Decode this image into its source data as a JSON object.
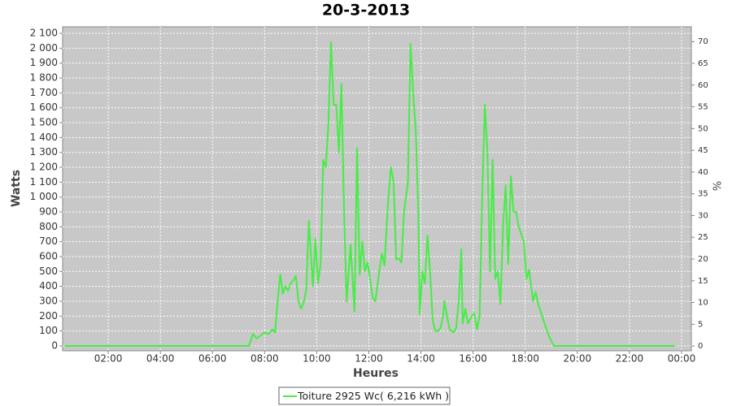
{
  "chart_data": {
    "type": "line",
    "title": "20-3-2013",
    "x_label": "Heures",
    "y_label": "Watts",
    "y2_label": "%",
    "legend_position": "bottom",
    "grid": true,
    "xlim": [
      0.25,
      24.375
    ],
    "xticks": [
      {
        "value": 2,
        "label": "02:00"
      },
      {
        "value": 4,
        "label": "04:00"
      },
      {
        "value": 6,
        "label": "06:00"
      },
      {
        "value": 8,
        "label": "08:00"
      },
      {
        "value": 10,
        "label": "10:00"
      },
      {
        "value": 12,
        "label": "12:00"
      },
      {
        "value": 14,
        "label": "14:00"
      },
      {
        "value": 16,
        "label": "16:00"
      },
      {
        "value": 18,
        "label": "18:00"
      },
      {
        "value": 20,
        "label": "20:00"
      },
      {
        "value": 22,
        "label": "22:00"
      },
      {
        "value": 24,
        "label": "00:00"
      }
    ],
    "ylim": [
      -33,
      2144
    ],
    "yticks": [
      0,
      100,
      200,
      300,
      400,
      500,
      600,
      700,
      800,
      900,
      {
        "value": 1000,
        "label": "1 000"
      },
      {
        "value": 1100,
        "label": "1 100"
      },
      {
        "value": 1200,
        "label": "1 200"
      },
      {
        "value": 1300,
        "label": "1 300"
      },
      {
        "value": 1400,
        "label": "1 400"
      },
      {
        "value": 1500,
        "label": "1 500"
      },
      {
        "value": 1600,
        "label": "1 600"
      },
      {
        "value": 1700,
        "label": "1 700"
      },
      {
        "value": 1800,
        "label": "1 800"
      },
      {
        "value": 1900,
        "label": "1 900"
      },
      {
        "value": 2000,
        "label": "2 000"
      },
      {
        "value": 2100,
        "label": "2 100"
      }
    ],
    "y2lim": [
      -1.1,
      73.4
    ],
    "y2ticks": [
      0,
      5,
      10,
      15,
      20,
      25,
      30,
      35,
      40,
      45,
      50,
      55,
      60,
      65,
      70
    ],
    "x": [
      0.34,
      7.4,
      7.55,
      7.7,
      7.85,
      8.0,
      8.15,
      8.3,
      8.4,
      8.5,
      8.6,
      8.7,
      8.8,
      8.9,
      9.0,
      9.1,
      9.2,
      9.3,
      9.4,
      9.5,
      9.6,
      9.7,
      9.8,
      9.85,
      9.95,
      10.05,
      10.15,
      10.25,
      10.35,
      10.45,
      10.55,
      10.65,
      10.75,
      10.85,
      10.95,
      11.05,
      11.15,
      11.3,
      11.45,
      11.55,
      11.65,
      11.75,
      11.85,
      11.95,
      12.05,
      12.15,
      12.25,
      12.4,
      12.5,
      12.6,
      12.75,
      12.85,
      12.95,
      13.05,
      13.15,
      13.25,
      13.35,
      13.5,
      13.6,
      13.7,
      13.8,
      13.9,
      13.95,
      14.05,
      14.15,
      14.25,
      14.35,
      14.45,
      14.55,
      14.65,
      14.75,
      14.85,
      14.9,
      15.0,
      15.1,
      15.25,
      15.35,
      15.45,
      15.55,
      15.6,
      15.7,
      15.8,
      15.95,
      16.05,
      16.15,
      16.25,
      16.35,
      16.45,
      16.55,
      16.65,
      16.75,
      16.85,
      16.95,
      17.05,
      17.15,
      17.25,
      17.35,
      17.45,
      17.55,
      17.65,
      17.75,
      17.85,
      17.95,
      18.05,
      18.15,
      18.3,
      18.4,
      18.5,
      18.65,
      18.8,
      18.95,
      19.1,
      23.75
    ],
    "series": [
      {
        "name": "Toiture 2925 Wc( 6,216 kWh )",
        "color": "#44ee44",
        "values": [
          0,
          0,
          80,
          50,
          70,
          90,
          80,
          110,
          90,
          300,
          480,
          350,
          400,
          370,
          420,
          440,
          470,
          300,
          250,
          290,
          380,
          840,
          550,
          400,
          720,
          420,
          550,
          1250,
          1200,
          1500,
          2040,
          1620,
          1620,
          1300,
          1760,
          900,
          300,
          680,
          230,
          1330,
          480,
          700,
          500,
          560,
          450,
          320,
          300,
          500,
          620,
          540,
          1000,
          1200,
          1100,
          580,
          590,
          560,
          900,
          1100,
          2030,
          1700,
          1450,
          900,
          210,
          500,
          420,
          740,
          500,
          170,
          100,
          100,
          120,
          200,
          300,
          200,
          110,
          90,
          120,
          300,
          650,
          150,
          250,
          150,
          200,
          220,
          110,
          200,
          1000,
          1620,
          1300,
          500,
          1250,
          450,
          500,
          280,
          800,
          1080,
          550,
          1140,
          900,
          900,
          800,
          750,
          700,
          450,
          510,
          300,
          360,
          280,
          200,
          120,
          50,
          0,
          0
        ]
      }
    ]
  }
}
